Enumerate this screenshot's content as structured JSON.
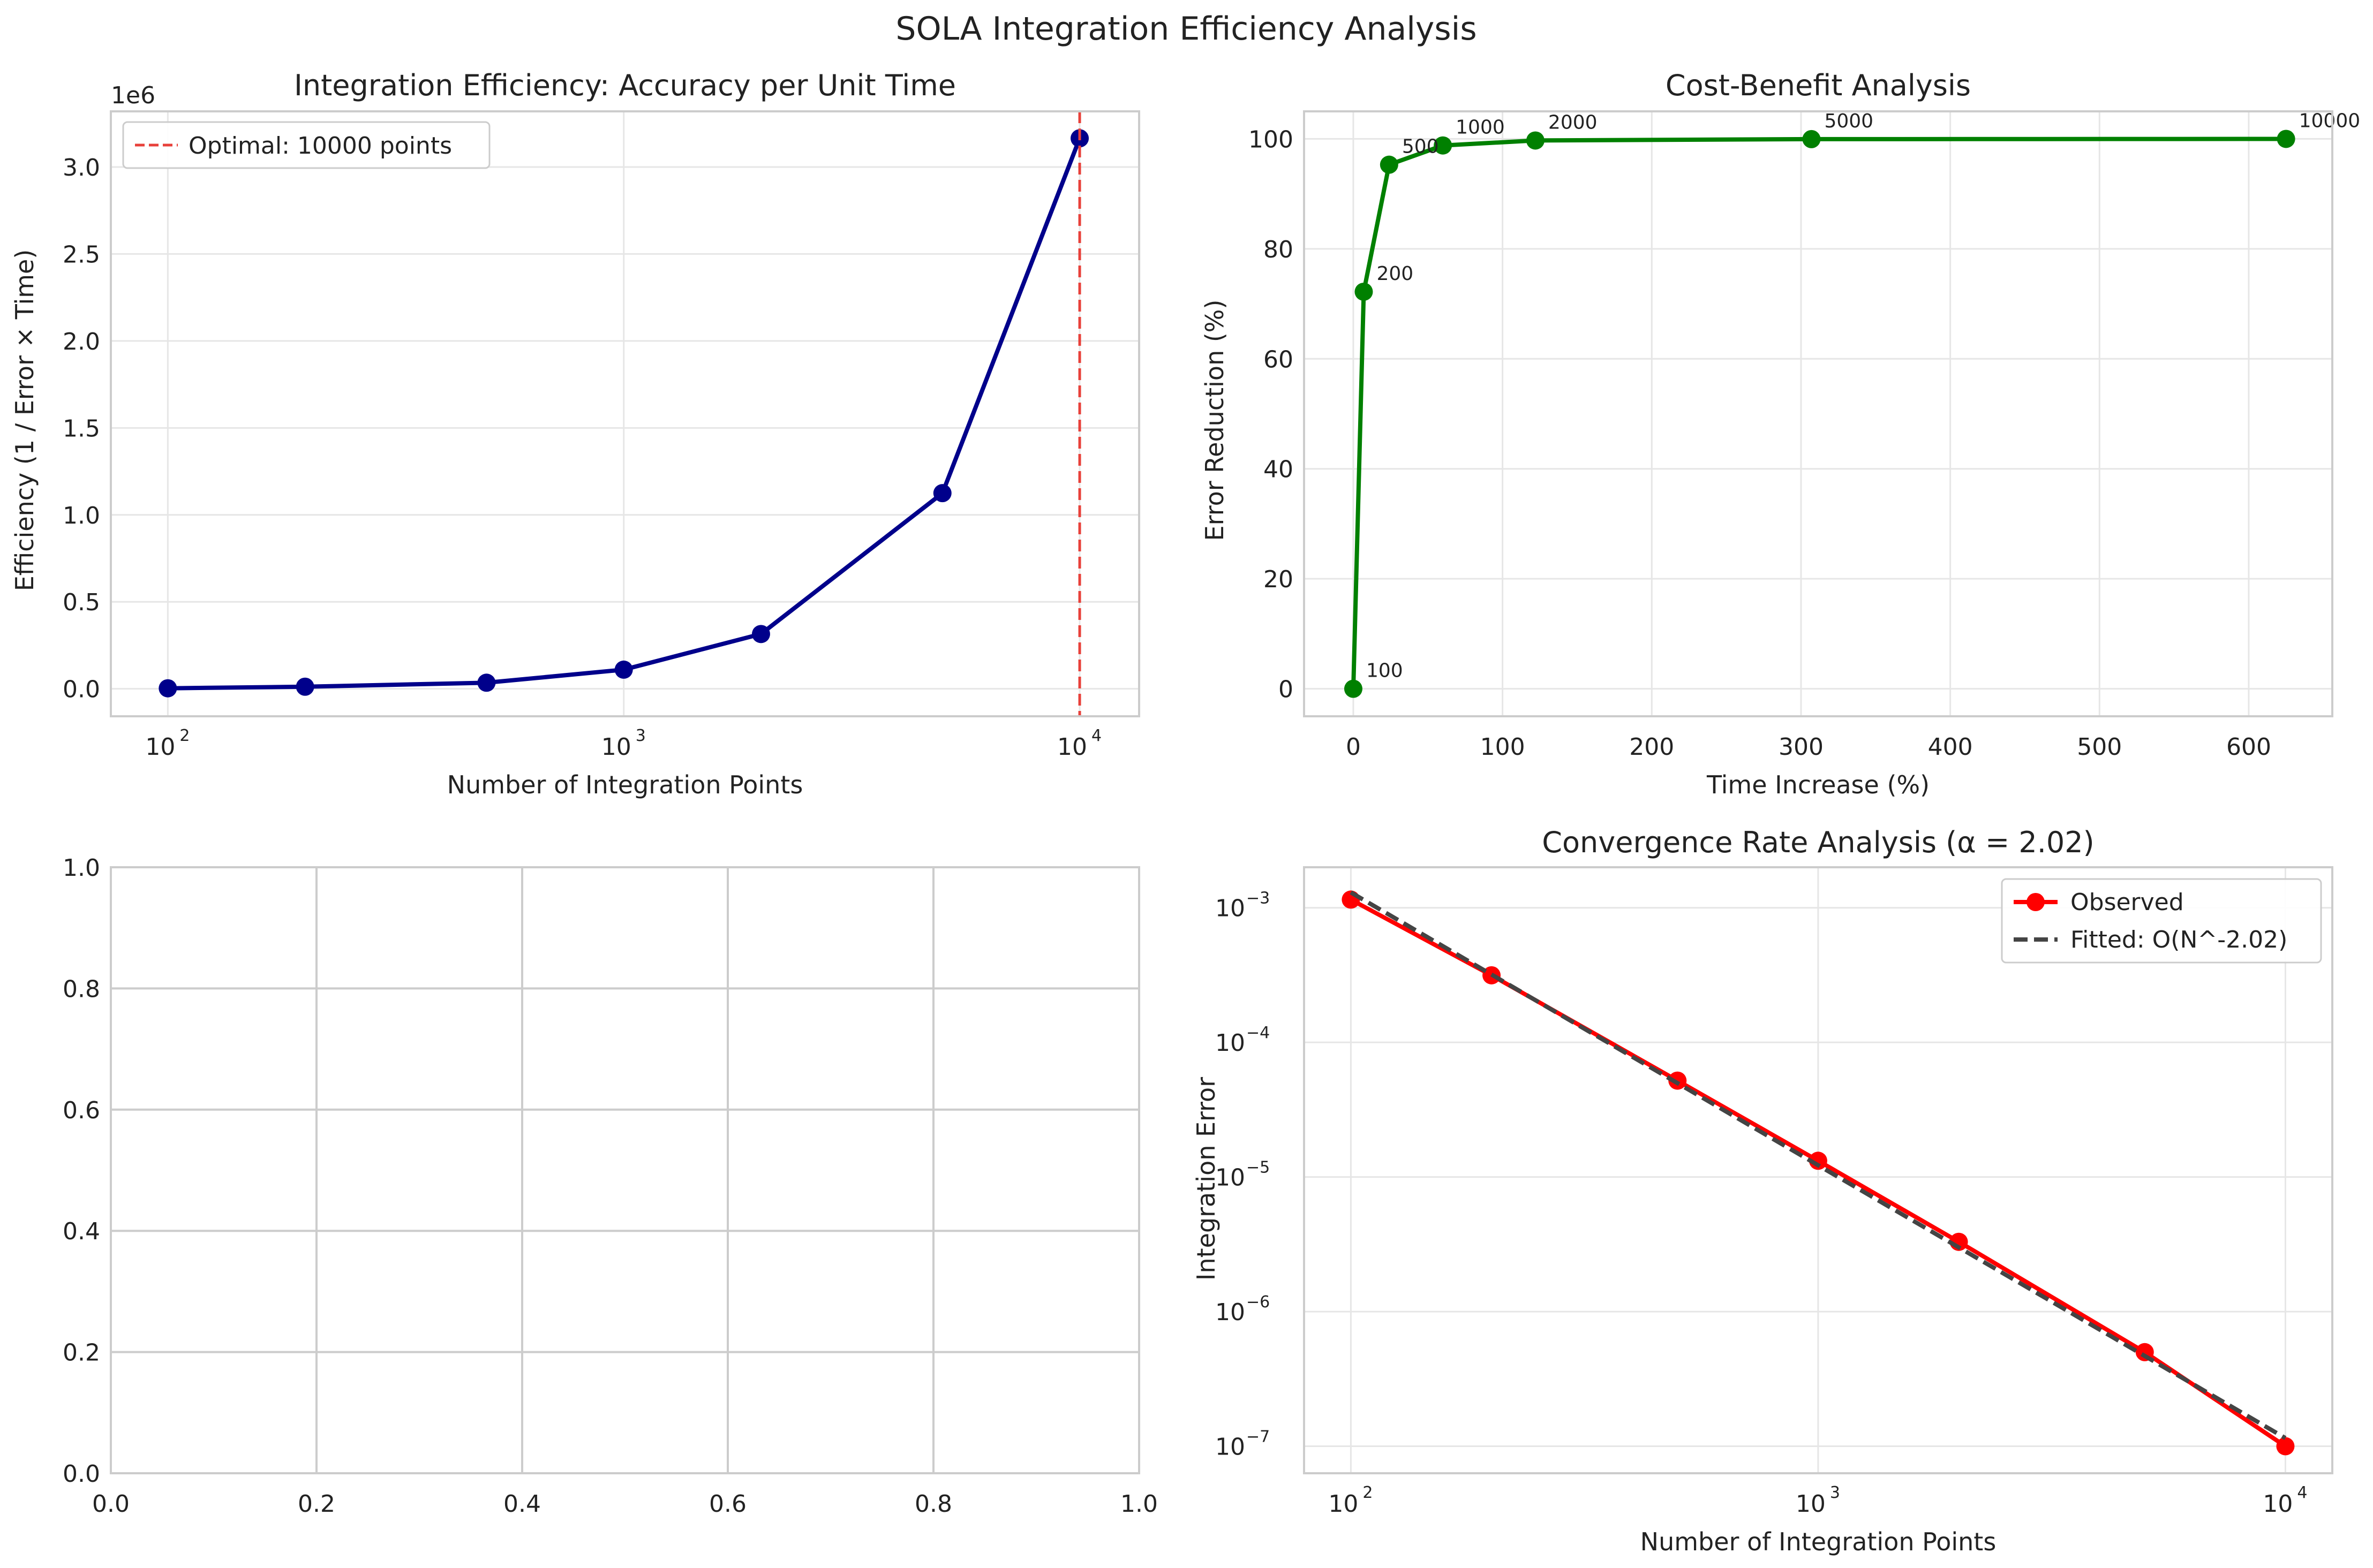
{
  "suptitle": "SOLA Integration Efficiency Analysis",
  "colors": {
    "efficiency": "#00008b",
    "optimal_line": "#e8403a",
    "costbenefit": "#008000",
    "observed": "#ff0000",
    "fitted": "#444444",
    "grid": "#e6e6e6",
    "spine": "#cccccc",
    "empty_grid": "#cccccc"
  },
  "chart_data": [
    {
      "type": "line",
      "title": "Integration Efficiency: Accuracy per Unit Time",
      "xlabel": "Number of Integration Points",
      "ylabel": "Efficiency (1 / Error × Time)",
      "offset_text": "1e6",
      "xscale": "log",
      "xlim": [
        75,
        13500
      ],
      "ylim": [
        -0.158,
        3.32
      ],
      "x_ticks": [
        100,
        1000,
        10000
      ],
      "x_tick_labels": [
        "10",
        "10",
        "10"
      ],
      "x_tick_exponents": [
        "2",
        "3",
        "4"
      ],
      "y_ticks": [
        0.0,
        0.5,
        1.0,
        1.5,
        2.0,
        2.5,
        3.0
      ],
      "y_tick_labels": [
        "0.0",
        "0.5",
        "1.0",
        "1.5",
        "2.0",
        "2.5",
        "3.0"
      ],
      "grid": true,
      "legend_position": "upper-left",
      "series": [
        {
          "x": [
            100,
            200,
            500,
            1000,
            2000,
            5000,
            10000
          ],
          "y": [
            0.003,
            0.012,
            0.035,
            0.11,
            0.315,
            1.125,
            3.165
          ]
        }
      ],
      "reference_line": {
        "x": 10000,
        "label": "Optimal: 10000 points"
      }
    },
    {
      "type": "line",
      "title": "Cost-Benefit Analysis",
      "xlabel": "Time Increase (%)",
      "ylabel": "Error Reduction (%)",
      "xlim": [
        -33,
        656
      ],
      "ylim": [
        -5,
        105
      ],
      "x_ticks": [
        0,
        100,
        200,
        300,
        400,
        500,
        600
      ],
      "x_tick_labels": [
        "0",
        "100",
        "200",
        "300",
        "400",
        "500",
        "600"
      ],
      "y_ticks": [
        0,
        20,
        40,
        60,
        80,
        100
      ],
      "y_tick_labels": [
        "0",
        "20",
        "40",
        "60",
        "80",
        "100"
      ],
      "grid": true,
      "series": [
        {
          "x": [
            0,
            7,
            24,
            60,
            122,
            307,
            625
          ],
          "y": [
            0,
            72.2,
            95.3,
            98.8,
            99.7,
            99.95,
            99.99
          ]
        }
      ],
      "annotations": [
        "100",
        "200",
        "500",
        "1000",
        "2000",
        "5000",
        "10000"
      ]
    },
    {
      "type": "line",
      "title": "",
      "xlabel": "",
      "ylabel": "",
      "xlim": [
        0,
        1
      ],
      "ylim": [
        0,
        1
      ],
      "x_ticks": [
        0.0,
        0.2,
        0.4,
        0.6,
        0.8,
        1.0
      ],
      "x_tick_labels": [
        "0.0",
        "0.2",
        "0.4",
        "0.6",
        "0.8",
        "1.0"
      ],
      "y_ticks": [
        0.0,
        0.2,
        0.4,
        0.6,
        0.8,
        1.0
      ],
      "y_tick_labels": [
        "0.0",
        "0.2",
        "0.4",
        "0.6",
        "0.8",
        "1.0"
      ],
      "grid": true,
      "series": []
    },
    {
      "type": "line",
      "title": "Convergence Rate Analysis (α = 2.02)",
      "xlabel": "Number of Integration Points",
      "ylabel": "Integration Error",
      "xscale": "log",
      "yscale": "log",
      "xlim": [
        79.4,
        12600
      ],
      "ylim": [
        6.3e-08,
        0.002
      ],
      "x_ticks": [
        100,
        1000,
        10000
      ],
      "x_tick_labels": [
        "10",
        "10",
        "10"
      ],
      "x_tick_exponents": [
        "2",
        "3",
        "4"
      ],
      "y_ticks": [
        1e-07,
        1e-06,
        1e-05,
        0.0001,
        0.001
      ],
      "y_tick_labels": [
        "10",
        "10",
        "10",
        "10",
        "10"
      ],
      "y_tick_exponents": [
        "−7",
        "−6",
        "−5",
        "−4",
        "−3"
      ],
      "grid": true,
      "legend_position": "upper-right",
      "series": [
        {
          "name": "Observed",
          "x": [
            100,
            200,
            500,
            1000,
            2000,
            5000,
            10000
          ],
          "y": [
            0.00115,
            0.000315,
            5.2e-05,
            1.32e-05,
            3.3e-06,
            5e-07,
            1e-07
          ]
        },
        {
          "name": "Fitted: O(N^-2.02)",
          "x": [
            100,
            10000
          ],
          "y": [
            0.0013,
            1.15e-07
          ]
        }
      ]
    }
  ]
}
